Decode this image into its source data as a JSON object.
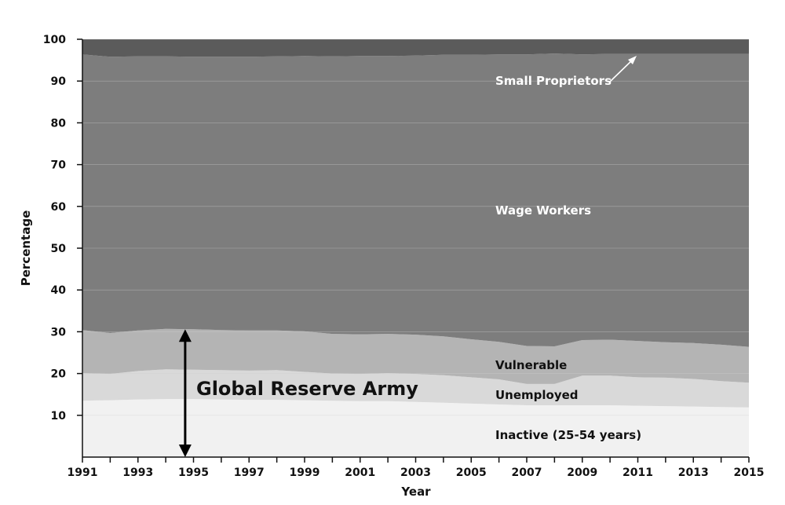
{
  "chart_data": {
    "type": "area",
    "stacked": true,
    "xlabel": "Year",
    "ylabel": "Percentage",
    "xlim": [
      1991,
      2015
    ],
    "ylim": [
      0,
      100
    ],
    "x_ticks": [
      "1991",
      "1993",
      "1995",
      "1997",
      "1999",
      "2001",
      "2003",
      "2005",
      "2007",
      "2009",
      "2011",
      "2013",
      "2015"
    ],
    "y_ticks": [
      "10",
      "20",
      "30",
      "40",
      "50",
      "60",
      "70",
      "80",
      "90",
      "100"
    ],
    "grid": true,
    "x": [
      1991,
      1992,
      1993,
      1994,
      1995,
      1996,
      1997,
      1998,
      1999,
      2000,
      2001,
      2002,
      2003,
      2004,
      2005,
      2006,
      2007,
      2008,
      2009,
      2010,
      2011,
      2012,
      2013,
      2014,
      2015
    ],
    "series": [
      {
        "name": "Inactive (25-54 years)",
        "color": "#f1f1f1",
        "values": [
          13.5,
          13.6,
          13.8,
          13.9,
          13.9,
          13.8,
          13.7,
          13.7,
          13.6,
          13.5,
          13.4,
          13.4,
          13.2,
          13.0,
          12.8,
          12.6,
          12.4,
          12.4,
          12.4,
          12.4,
          12.3,
          12.2,
          12.1,
          12.0,
          11.9
        ]
      },
      {
        "name": "Unemployed",
        "color": "#d9d9d9",
        "values": [
          6.6,
          6.3,
          6.8,
          7.1,
          7.0,
          7.0,
          7.0,
          7.1,
          6.8,
          6.5,
          6.5,
          6.7,
          6.7,
          6.6,
          6.3,
          6.0,
          5.1,
          5.1,
          7.1,
          7.1,
          6.8,
          6.8,
          6.6,
          6.2,
          5.9
        ]
      },
      {
        "name": "Vulnerable",
        "color": "#b4b4b4",
        "values": [
          10.3,
          9.8,
          9.7,
          9.7,
          9.7,
          9.6,
          9.6,
          9.5,
          9.7,
          9.5,
          9.5,
          9.4,
          9.4,
          9.3,
          9.1,
          9.0,
          9.1,
          9.0,
          8.5,
          8.6,
          8.7,
          8.5,
          8.6,
          8.7,
          8.6
        ]
      },
      {
        "name": "Wage Workers",
        "color": "#7d7d7d",
        "values": [
          66.0,
          66.1,
          65.6,
          65.2,
          65.2,
          65.4,
          65.5,
          65.6,
          65.9,
          66.4,
          66.6,
          66.5,
          66.8,
          67.4,
          68.1,
          68.8,
          69.8,
          70.1,
          68.4,
          68.4,
          68.7,
          69.0,
          69.2,
          69.6,
          70.1
        ]
      },
      {
        "name": "Small Proprietors",
        "color": "#5b5b5b",
        "values": [
          3.6,
          4.2,
          4.1,
          4.1,
          4.2,
          4.2,
          4.2,
          4.1,
          4.0,
          4.1,
          4.0,
          4.0,
          3.9,
          3.7,
          3.7,
          3.6,
          3.6,
          3.4,
          3.6,
          3.5,
          3.5,
          3.5,
          3.5,
          3.5,
          3.5
        ]
      }
    ],
    "annotation": {
      "text": "Global Reserve Army",
      "x": 1994.7,
      "y_range": [
        0,
        30.6
      ]
    }
  },
  "labels": {
    "small_proprietors": "Small Proprietors",
    "wage_workers": "Wage Workers",
    "vulnerable": "Vulnerable",
    "unemployed": "Unemployed",
    "inactive": "Inactive (25-54 years)",
    "reserve_army": "Global Reserve Army"
  },
  "colors": {
    "grid": "#cfcfcf",
    "axis": "#111111",
    "dark_label": "#111111",
    "light_label": "#ffffff"
  }
}
